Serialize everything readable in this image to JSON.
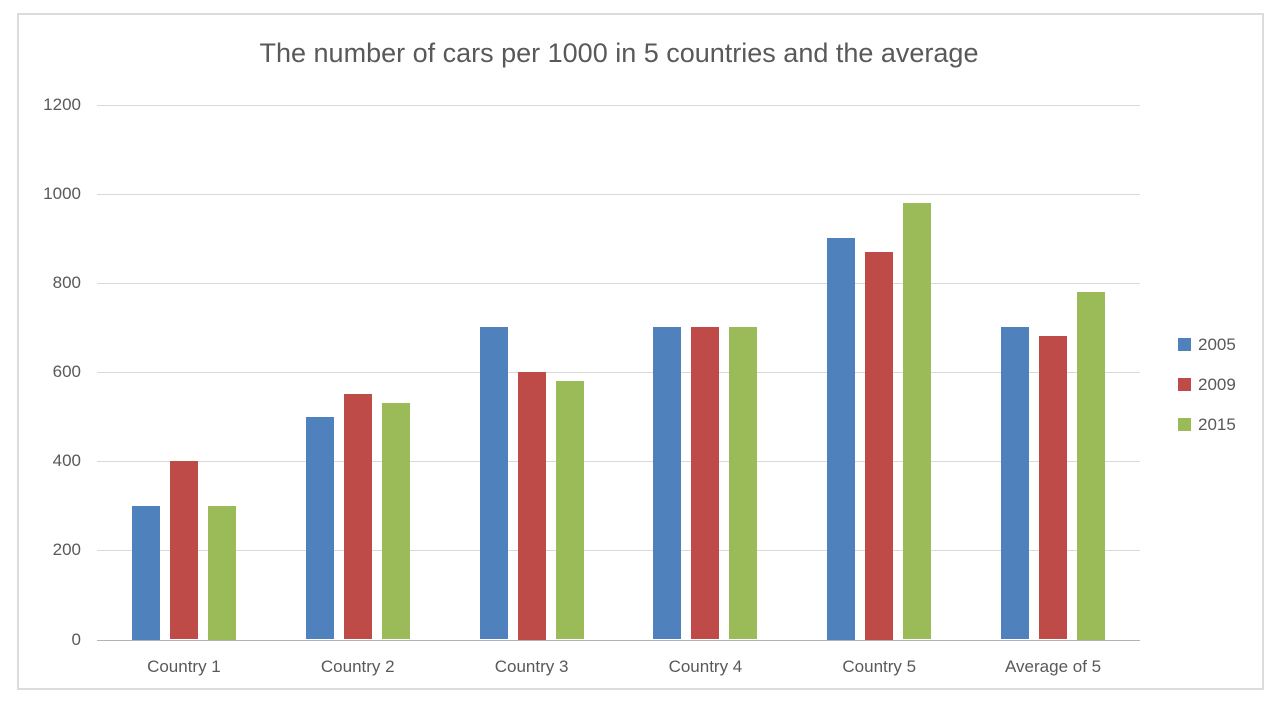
{
  "colors": {
    "text": "#595959",
    "gridline": "#d9d9d9",
    "axis_line": "#b3b3b3",
    "frame_border": "#dcdcdc",
    "background": "#ffffff"
  },
  "chart_data": {
    "type": "bar",
    "title": "The number of cars per 1000 in 5 countries and the average",
    "categories": [
      "Country 1",
      "Country 2",
      "Country 3",
      "Country 4",
      "Country 5",
      "Average of 5"
    ],
    "series": [
      {
        "name": "2005",
        "color": "#4F81BD",
        "values": [
          300,
          500,
          700,
          700,
          900,
          700
        ]
      },
      {
        "name": "2009",
        "color": "#BE4B48",
        "values": [
          400,
          550,
          600,
          700,
          870,
          680
        ]
      },
      {
        "name": "2015",
        "color": "#9BBB59",
        "values": [
          300,
          530,
          580,
          700,
          980,
          780
        ]
      }
    ],
    "xlabel": "",
    "ylabel": "",
    "ylim": [
      0,
      1200
    ],
    "ytick_step": 200,
    "ytick_labels": [
      "0",
      "200",
      "400",
      "600",
      "800",
      "1000",
      "1200"
    ],
    "grid": true,
    "legend_position": "right"
  }
}
